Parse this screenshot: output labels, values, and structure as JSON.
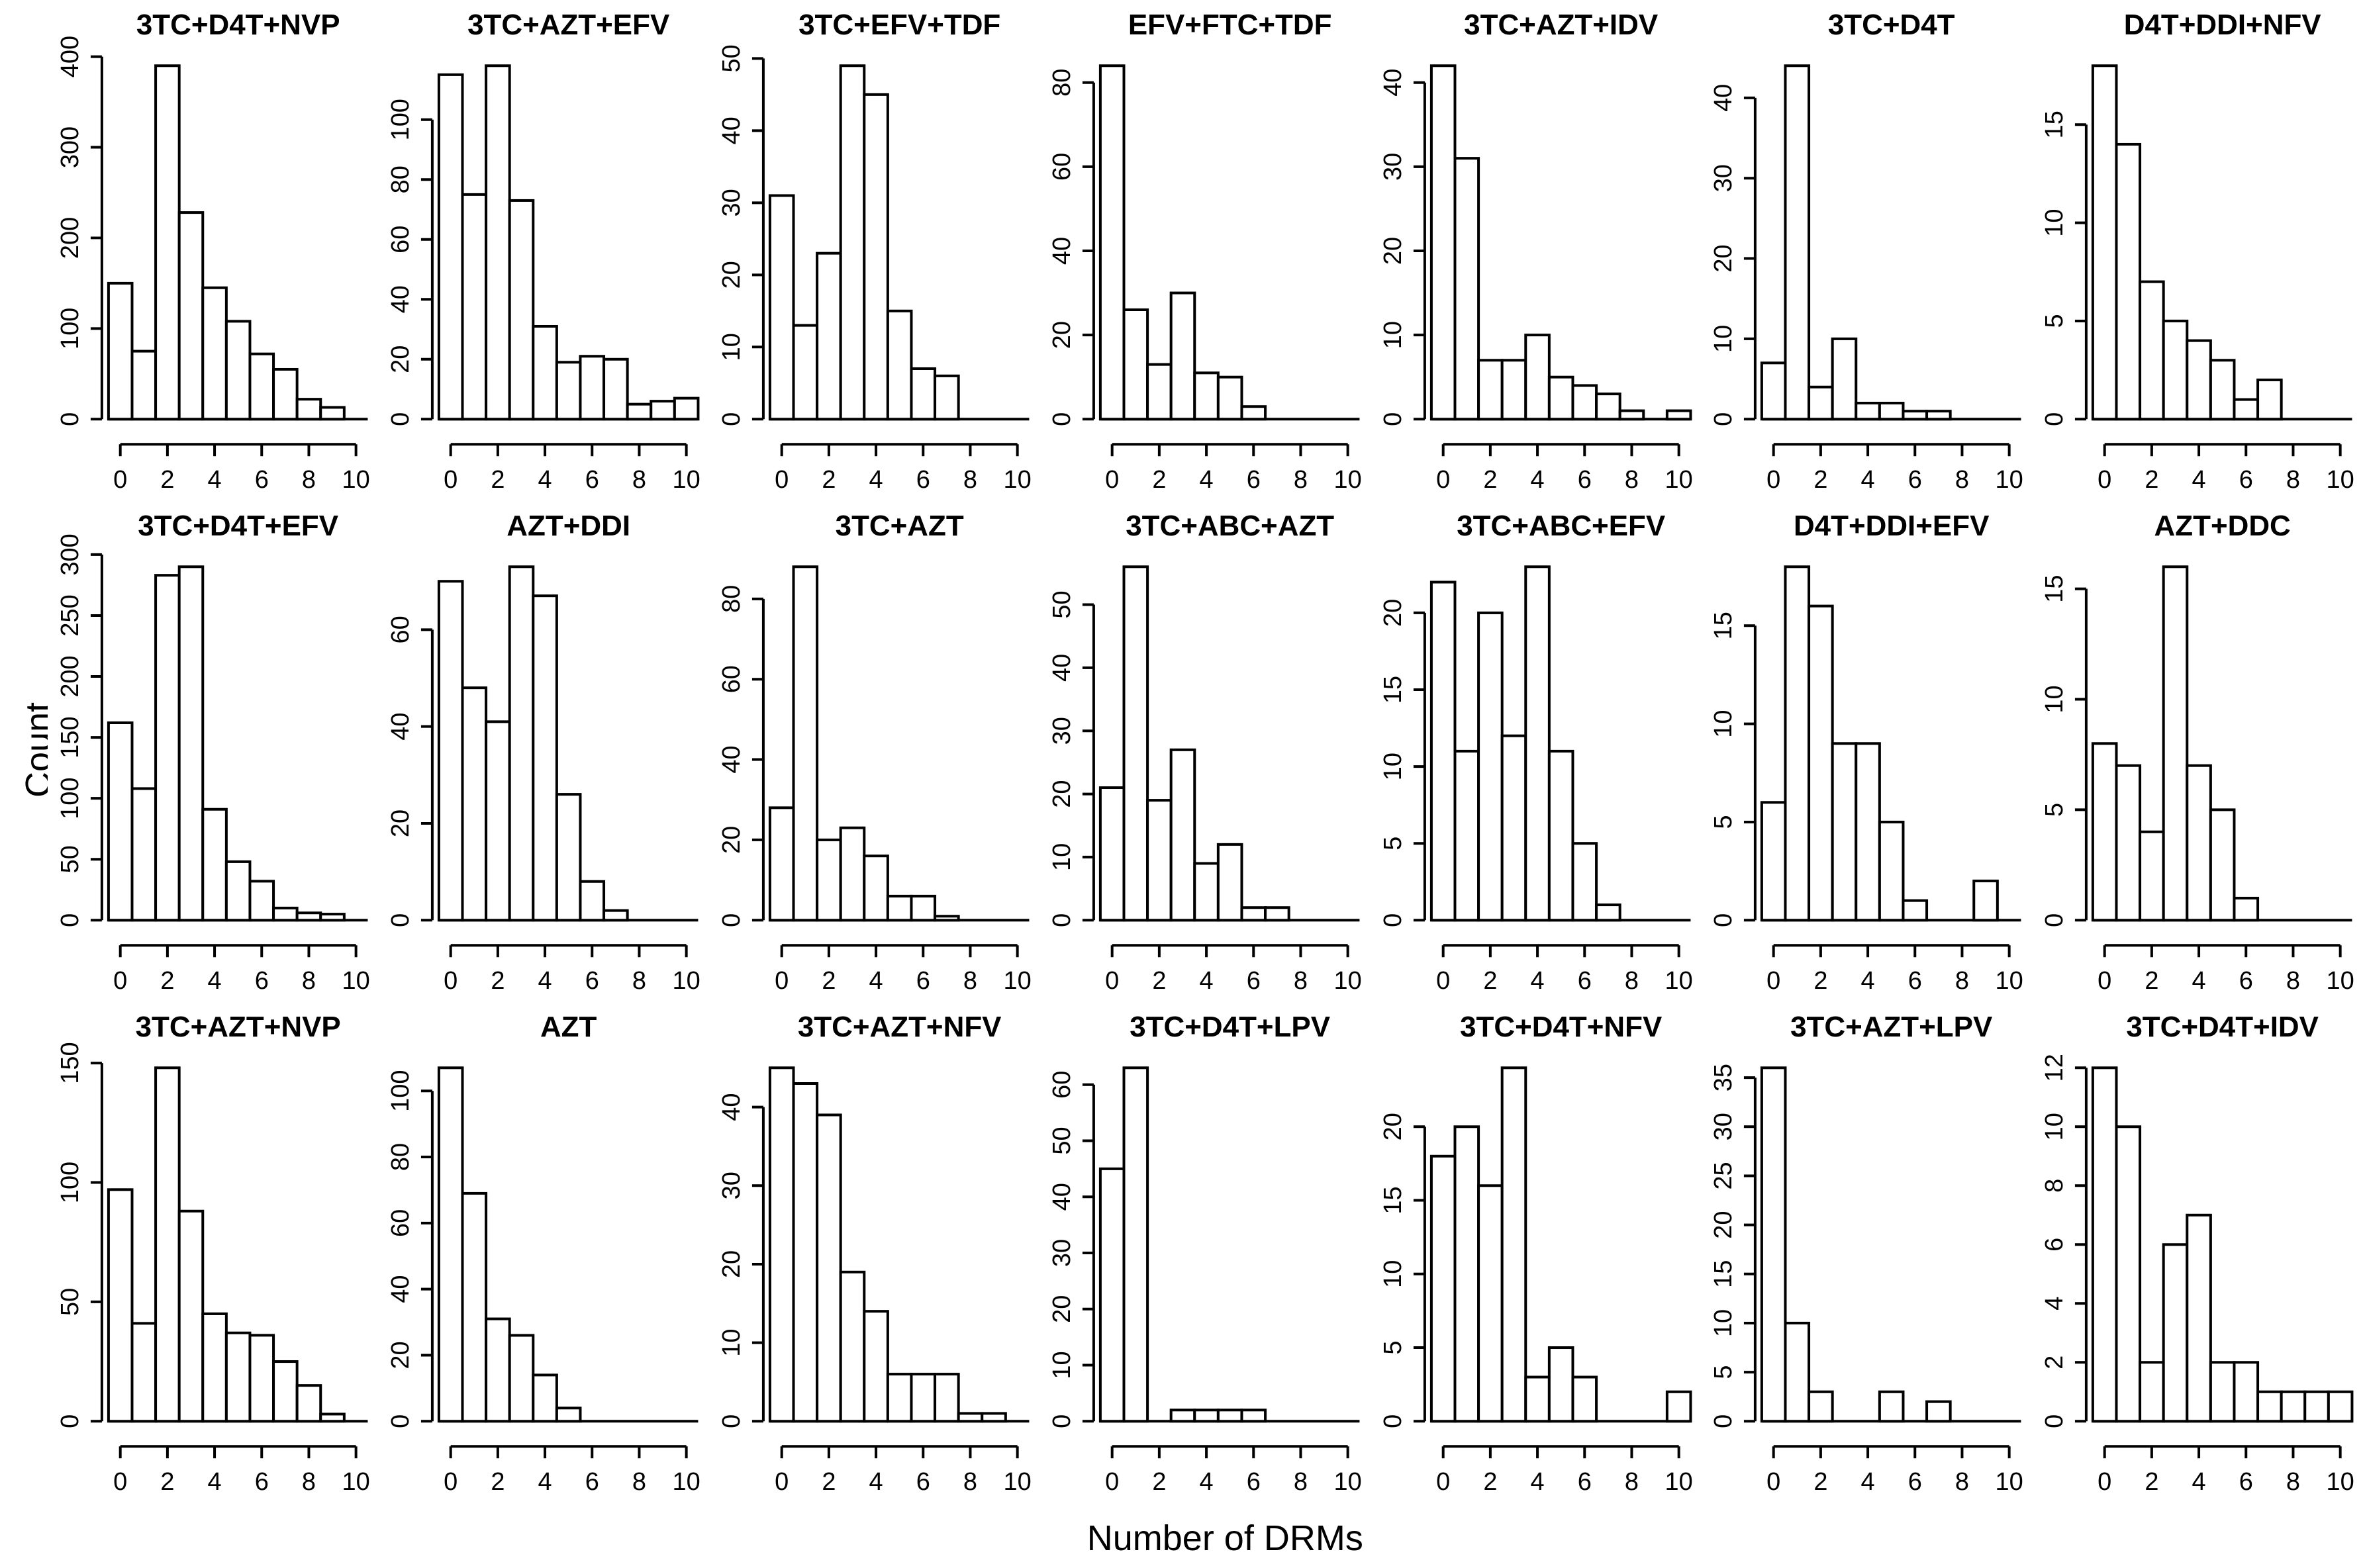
{
  "figure": {
    "ylabel": "Count",
    "xlabel": "Number of DRMs",
    "x_ticks": [
      0,
      2,
      4,
      6,
      8,
      10
    ],
    "x_bins": [
      0,
      1,
      2,
      3,
      4,
      5,
      6,
      7,
      8,
      9,
      10
    ],
    "colors": {
      "stroke": "#000000",
      "background": "#ffffff"
    },
    "layout": {
      "rows": 3,
      "columns": 7,
      "grid": true
    }
  },
  "chart_data": [
    {
      "type": "bar",
      "title": "3TC+D4T+NVP",
      "values": [
        150,
        75,
        390,
        228,
        145,
        108,
        72,
        55,
        22,
        13,
        0
      ],
      "y_ticks": [
        0,
        100,
        200,
        300,
        400
      ]
    },
    {
      "type": "bar",
      "title": "3TC+AZT+EFV",
      "values": [
        115,
        75,
        118,
        73,
        31,
        19,
        21,
        20,
        5,
        6,
        7
      ],
      "y_ticks": [
        0,
        20,
        40,
        60,
        80,
        100
      ]
    },
    {
      "type": "bar",
      "title": "3TC+EFV+TDF",
      "values": [
        31,
        13,
        23,
        49,
        45,
        15,
        7,
        6,
        0,
        0,
        0
      ],
      "y_ticks": [
        0,
        10,
        20,
        30,
        40,
        50
      ]
    },
    {
      "type": "bar",
      "title": "EFV+FTC+TDF",
      "values": [
        84,
        26,
        13,
        30,
        11,
        10,
        3,
        0,
        0,
        0,
        0
      ],
      "y_ticks": [
        0,
        20,
        40,
        60,
        80
      ]
    },
    {
      "type": "bar",
      "title": "3TC+AZT+IDV",
      "values": [
        42,
        31,
        7,
        7,
        10,
        5,
        4,
        3,
        1,
        0,
        1
      ],
      "y_ticks": [
        0,
        10,
        20,
        30,
        40
      ]
    },
    {
      "type": "bar",
      "title": "3TC+D4T",
      "values": [
        7,
        44,
        4,
        10,
        2,
        2,
        1,
        1,
        0,
        0,
        0
      ],
      "y_ticks": [
        0,
        10,
        20,
        30,
        40
      ]
    },
    {
      "type": "bar",
      "title": "D4T+DDI+NFV",
      "values": [
        18,
        14,
        7,
        5,
        4,
        3,
        1,
        2,
        0,
        0,
        0
      ],
      "y_ticks": [
        0,
        5,
        10,
        15
      ]
    },
    {
      "type": "bar",
      "title": "3TC+D4T+EFV",
      "values": [
        162,
        108,
        283,
        290,
        91,
        48,
        32,
        10,
        6,
        5,
        0
      ],
      "y_ticks": [
        0,
        50,
        100,
        150,
        200,
        250,
        300
      ]
    },
    {
      "type": "bar",
      "title": "AZT+DDI",
      "values": [
        70,
        48,
        41,
        73,
        67,
        26,
        8,
        2,
        0,
        0,
        0
      ],
      "y_ticks": [
        0,
        20,
        40,
        60
      ]
    },
    {
      "type": "bar",
      "title": "3TC+AZT",
      "values": [
        28,
        88,
        20,
        23,
        16,
        6,
        6,
        1,
        0,
        0,
        0
      ],
      "y_ticks": [
        0,
        20,
        40,
        60,
        80
      ]
    },
    {
      "type": "bar",
      "title": "3TC+ABC+AZT",
      "values": [
        21,
        56,
        19,
        27,
        9,
        12,
        2,
        2,
        0,
        0,
        0
      ],
      "y_ticks": [
        0,
        10,
        20,
        30,
        40,
        50
      ]
    },
    {
      "type": "bar",
      "title": "3TC+ABC+EFV",
      "values": [
        22,
        11,
        20,
        12,
        23,
        11,
        5,
        1,
        0,
        0,
        0
      ],
      "y_ticks": [
        0,
        5,
        10,
        15,
        20
      ]
    },
    {
      "type": "bar",
      "title": "D4T+DDI+EFV",
      "values": [
        6,
        18,
        16,
        9,
        9,
        5,
        1,
        0,
        0,
        2,
        0
      ],
      "y_ticks": [
        0,
        5,
        10,
        15
      ]
    },
    {
      "type": "bar",
      "title": "AZT+DDC",
      "values": [
        8,
        7,
        4,
        16,
        7,
        5,
        1,
        0,
        0,
        0,
        0
      ],
      "y_ticks": [
        0,
        5,
        10,
        15
      ]
    },
    {
      "type": "bar",
      "title": "3TC+AZT+NVP",
      "values": [
        97,
        41,
        148,
        88,
        45,
        37,
        36,
        25,
        15,
        3,
        0
      ],
      "y_ticks": [
        0,
        50,
        100,
        150
      ]
    },
    {
      "type": "bar",
      "title": "AZT",
      "values": [
        107,
        69,
        31,
        26,
        14,
        4,
        0,
        0,
        0,
        0,
        0
      ],
      "y_ticks": [
        0,
        20,
        40,
        60,
        80,
        100
      ]
    },
    {
      "type": "bar",
      "title": "3TC+AZT+NFV",
      "values": [
        45,
        43,
        39,
        19,
        14,
        6,
        6,
        6,
        1,
        1,
        0
      ],
      "y_ticks": [
        0,
        10,
        20,
        30,
        40
      ]
    },
    {
      "type": "bar",
      "title": "3TC+D4T+LPV",
      "values": [
        45,
        63,
        0,
        2,
        2,
        2,
        2,
        0,
        0,
        0,
        0
      ],
      "y_ticks": [
        0,
        10,
        20,
        30,
        40,
        50,
        60
      ]
    },
    {
      "type": "bar",
      "title": "3TC+D4T+NFV",
      "values": [
        18,
        20,
        16,
        24,
        3,
        5,
        3,
        0,
        0,
        0,
        2
      ],
      "y_ticks": [
        0,
        5,
        10,
        15,
        20
      ]
    },
    {
      "type": "bar",
      "title": "3TC+AZT+LPV",
      "values": [
        36,
        10,
        3,
        0,
        0,
        3,
        0,
        2,
        0,
        0,
        0
      ],
      "y_ticks": [
        0,
        5,
        10,
        15,
        20,
        25,
        30,
        35
      ]
    },
    {
      "type": "bar",
      "title": "3TC+D4T+IDV",
      "values": [
        12,
        10,
        2,
        6,
        7,
        2,
        2,
        1,
        1,
        1,
        1
      ],
      "y_ticks": [
        0,
        2,
        4,
        6,
        8,
        10,
        12
      ]
    }
  ]
}
